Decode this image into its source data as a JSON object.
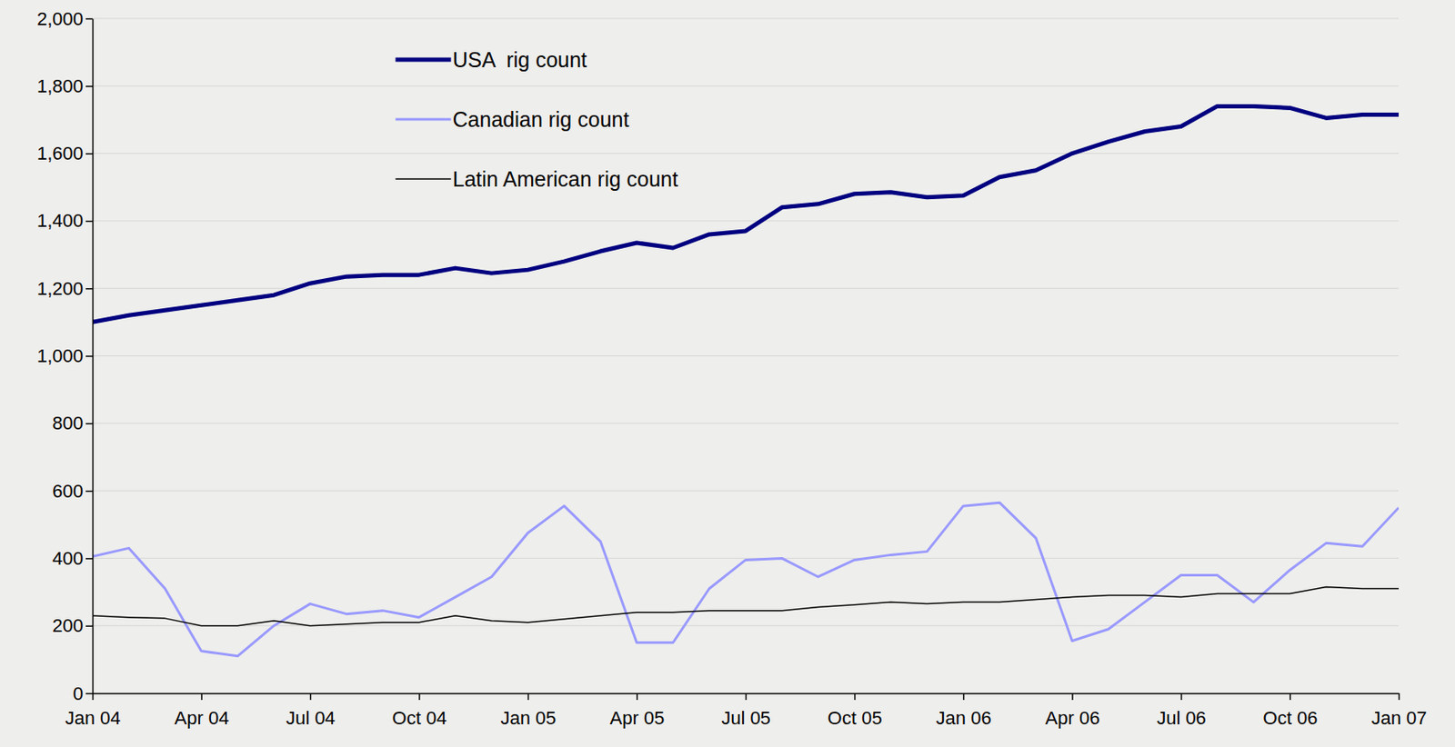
{
  "chart_data": {
    "type": "line",
    "categories": [
      "Jan 04",
      null,
      null,
      "Apr 04",
      null,
      null,
      "Jul 04",
      null,
      null,
      "Oct 04",
      null,
      null,
      "Jan 05",
      null,
      null,
      "Apr 05",
      null,
      null,
      "Jul 05",
      null,
      null,
      "Oct 05",
      null,
      null,
      "Jan 06",
      null,
      null,
      "Apr 06",
      null,
      null,
      "Jul 06",
      null,
      null,
      "Oct 06",
      null,
      null,
      "Jan 07"
    ],
    "series": [
      {
        "name": "USA  rig count",
        "color": "#000080",
        "values": [
          1100,
          1120,
          1135,
          1150,
          1165,
          1180,
          1215,
          1235,
          1240,
          1240,
          1260,
          1245,
          1255,
          1280,
          1310,
          1335,
          1320,
          1360,
          1370,
          1440,
          1450,
          1480,
          1485,
          1470,
          1475,
          1530,
          1550,
          1600,
          1635,
          1665,
          1680,
          1740,
          1740,
          1735,
          1705,
          1715,
          1715
        ]
      },
      {
        "name": "Canadian rig count",
        "color": "#9999ff",
        "values": [
          405,
          430,
          310,
          125,
          110,
          200,
          265,
          235,
          245,
          225,
          285,
          345,
          475,
          555,
          450,
          150,
          150,
          310,
          395,
          400,
          345,
          395,
          410,
          420,
          555,
          565,
          460,
          155,
          190,
          270,
          350,
          350,
          270,
          365,
          445,
          435,
          550
        ]
      },
      {
        "name": "Latin American rig count",
        "color": "#000000",
        "values": [
          230,
          225,
          222,
          200,
          200,
          215,
          200,
          205,
          210,
          210,
          230,
          215,
          210,
          220,
          230,
          240,
          240,
          245,
          245,
          245,
          255,
          262,
          270,
          265,
          270,
          270,
          278,
          285,
          290,
          290,
          285,
          295,
          295,
          295,
          315,
          310,
          310
        ]
      }
    ],
    "ylim": [
      0,
      2000
    ],
    "yticks": [
      0,
      200,
      400,
      600,
      800,
      {
        "value": 1000,
        "label": "1,000"
      },
      {
        "value": 1200,
        "label": "1,200"
      },
      {
        "value": 1400,
        "label": "1,400"
      },
      {
        "value": 1600,
        "label": "1,600"
      },
      {
        "value": 1800,
        "label": "1,800"
      },
      {
        "value": 2000,
        "label": "2,000"
      }
    ],
    "grid": true,
    "legend": "top"
  }
}
